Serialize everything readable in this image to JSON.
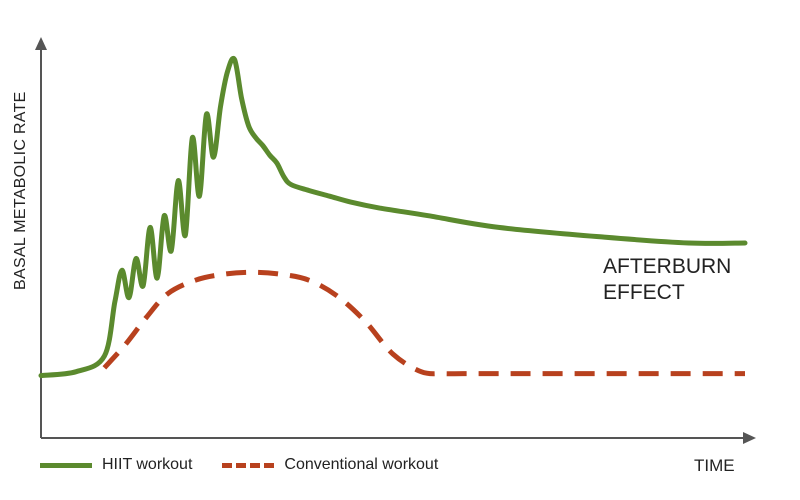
{
  "chart_data": {
    "type": "line",
    "title": "",
    "xlabel": "TIME",
    "ylabel": "BASAL METABOLIC RATE",
    "annotation": [
      "AFTERBURN",
      "EFFECT"
    ],
    "xlim": [
      0,
      100
    ],
    "ylim": [
      0,
      100
    ],
    "grid": false,
    "legend": "bottom-left",
    "series": [
      {
        "name": "HIIT workout",
        "color": "#5b8a2e",
        "style": "solid",
        "x": [
          0,
          5,
          9,
          10.5,
          11.5,
          12.5,
          13.5,
          14.5,
          15.5,
          16.5,
          17.5,
          18.5,
          19.5,
          20.5,
          21.5,
          22.5,
          23.5,
          24.5,
          25.5,
          26.5,
          27.5,
          28.5,
          29.5,
          30.5,
          31.5,
          32.5,
          33.5,
          34.5,
          35.5,
          38,
          41,
          44,
          48,
          55,
          65,
          80,
          92,
          100
        ],
        "y": [
          16,
          17,
          21,
          35,
          43,
          36,
          46,
          39,
          54,
          41,
          57,
          48,
          66,
          52,
          77,
          62,
          83,
          72,
          85,
          94,
          97,
          87,
          80,
          77,
          75,
          72.5,
          70.5,
          67,
          65,
          63.5,
          62,
          60.5,
          59,
          57,
          54,
          51.5,
          50,
          50
        ]
      },
      {
        "name": "Conventional workout",
        "color": "#b8411e",
        "style": "dashed",
        "x": [
          9,
          12,
          15,
          18,
          22,
          26,
          30,
          34,
          38,
          42,
          46,
          50,
          54,
          57,
          60,
          65,
          70,
          80,
          90,
          100
        ],
        "y": [
          18,
          24,
          31,
          37,
          40.5,
          42,
          42.5,
          42,
          40.5,
          36.5,
          30,
          21.5,
          17,
          16.5,
          16.5,
          16.5,
          16.5,
          16.5,
          16.5,
          16.5
        ]
      }
    ]
  }
}
